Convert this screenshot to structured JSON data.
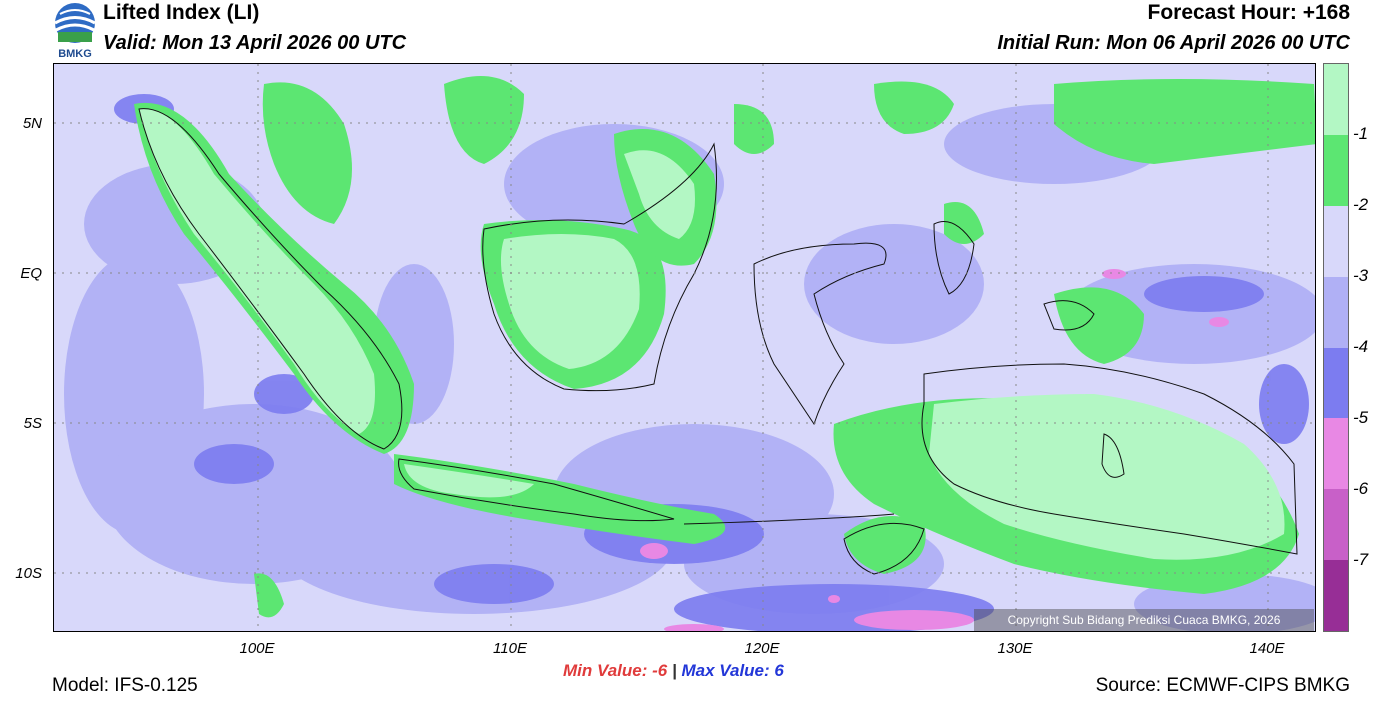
{
  "header": {
    "logo_text": "BMKG",
    "title": "Lifted Index (LI)",
    "valid": "Valid: Mon 13 April 2026 00 UTC",
    "forecast_hour": "Forecast Hour: +168",
    "initial_run": "Initial Run: Mon 06 April 2026 00 UTC"
  },
  "axes": {
    "lat_labels": [
      "5N",
      "EQ",
      "5S",
      "10S"
    ],
    "lon_labels": [
      "100E",
      "110E",
      "120E",
      "130E",
      "140E"
    ]
  },
  "copyright": "Copyright Sub Bidang Prediksi Cuaca BMKG, 2026",
  "colorbar": {
    "labels": [
      "-1",
      "-2",
      "-3",
      "-4",
      "-5",
      "-6",
      "-7"
    ],
    "colors": [
      "#b3f7c4",
      "#5ce672",
      "#d8d8fa",
      "#b0b0f5",
      "#7c7cf0",
      "#e888e4",
      "#c860c8",
      "#972e96"
    ]
  },
  "stats": {
    "min_label": "Min Value:",
    "min_value": "-6",
    "separator": "|",
    "max_label": "Max Value:",
    "max_value": "6"
  },
  "footer": {
    "model": "Model: IFS-0.125",
    "source": "Source: ECMWF-CIPS BMKG"
  }
}
